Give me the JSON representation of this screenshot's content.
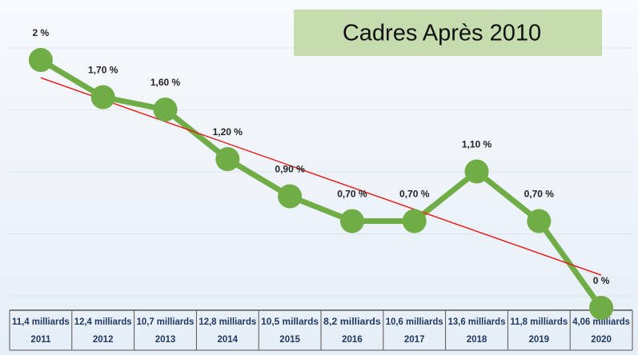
{
  "chart_data": {
    "type": "line",
    "title": "Cadres Après 2010",
    "categories": [
      "2011",
      "2012",
      "2013",
      "2014",
      "2015",
      "2016",
      "2017",
      "2018",
      "2019",
      "2020"
    ],
    "amounts": [
      "11,4 milliards",
      "12,4 milliards",
      "10,7 milliards",
      "12,8 milliards",
      "10,5 millards",
      "8,2 milliards",
      "10,6 milliards",
      "13,6 milliards",
      "11,8 milliards",
      "4,06 milliards"
    ],
    "series": [
      {
        "color": "#70ad47",
        "values": [
          2,
          1.7,
          1.6,
          1.2,
          0.9,
          0.7,
          0.7,
          1.1,
          0.7,
          0
        ],
        "value_labels": [
          "2 %",
          "1,70 %",
          "1,60 %",
          "1,20 %",
          "0,90 %",
          "0,70 %",
          "0,70 %",
          "1,10 %",
          "0,70 %",
          "0 %"
        ]
      }
    ],
    "ylim": [
      0,
      2
    ],
    "yticks": [
      0,
      0.5,
      1,
      1.5,
      2
    ],
    "grid": true,
    "trendline": {
      "color": "#e8231f"
    }
  }
}
